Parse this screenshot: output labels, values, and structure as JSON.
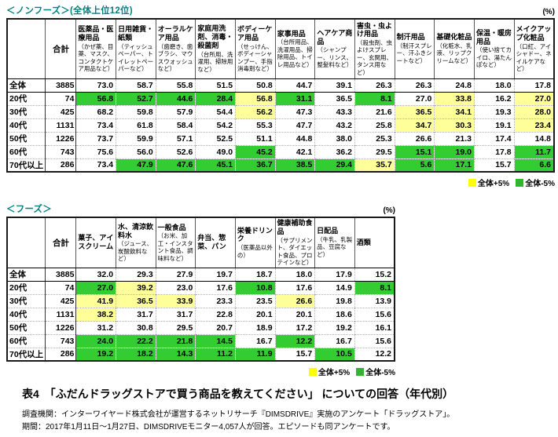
{
  "colors": {
    "section_title": "#008080",
    "highlight_plus": "#ffff99",
    "highlight_minus": "#33cc33",
    "legend_plus": "#ffff00",
    "legend_minus": "#2db82d"
  },
  "legend": {
    "plus_label": "全体+5%",
    "minus_label": "全体-5%"
  },
  "caption": "表4　「ふだんドラッグストアで買う商品を教えてください」 についての回答（年代別）",
  "footnotes": [
    "調査機関：インターワイヤード株式会社が運営するネットリサーチ『DIMSDRIVE』実施のアンケート「ドラッグストア」。",
    "期間：2017年1月11日～1月27日、DIMSDRIVEモニター4,057人が回答。エピソードも同アンケートです。"
  ],
  "table1": {
    "title": "＜ノンフーズ＞(全体上位12位)",
    "percent": "(%)",
    "total_label": "合計",
    "columns": [
      {
        "label": "医薬品・医療用品",
        "sub": "（かぜ薬、目薬、マスク、コンタクトケア用品など）"
      },
      {
        "label": "日用雑貨・紙類",
        "sub": "（ティッシュペーパー、トイレットペーパーなど）"
      },
      {
        "label": "オーラルケア用品",
        "sub": "（歯磨き、歯ブラシ、マウスウォッシュなど）"
      },
      {
        "label": "家庭用洗剤、消毒・殺菌剤",
        "sub": "（台所用、洗濯用、掃除用など）"
      },
      {
        "label": "ボディーケア用品",
        "sub": "（せっけん、ボディーシャンプー、手指消毒剤など）"
      },
      {
        "label": "家事用品",
        "sub": "（台所用品、洗濯用品、掃除用品、トイレ用品など）"
      },
      {
        "label": "ヘアケア商品",
        "sub": "（シャンプー、リンス、整髪料など）"
      },
      {
        "label": "害虫・虫よけ用品",
        "sub": "（殺虫剤、虫よけスプレー、玄関用、タンス用など）"
      },
      {
        "label": "制汗用品",
        "sub": "（制汗スプレー、汗ふきシートなど）"
      },
      {
        "label": "基礎化粧品",
        "sub": "（化粧水、乳液、リップクリームなど）"
      },
      {
        "label": "保温・暖房用品",
        "sub": "（使い捨てカイロ、湯たんぽなど）"
      },
      {
        "label": "メイクアップ化粧品",
        "sub": "（口紅、アイシャドー、ネイルケアなど）"
      }
    ],
    "rows": [
      {
        "label": "全体",
        "total": "3885",
        "values": [
          "73.0",
          "58.7",
          "55.8",
          "51.5",
          "50.8",
          "44.7",
          "39.1",
          "26.3",
          "26.3",
          "24.8",
          "18.0",
          "17.8"
        ],
        "hl": [
          "",
          "",
          "",
          "",
          "",
          "",
          "",
          "",
          "",
          "",
          "",
          ""
        ]
      },
      {
        "label": "20代",
        "total": "74",
        "values": [
          "56.8",
          "52.7",
          "44.6",
          "28.4",
          "56.8",
          "31.1",
          "36.5",
          "8.1",
          "27.0",
          "33.8",
          "16.2",
          "27.0"
        ],
        "hl": [
          "g",
          "g",
          "g",
          "g",
          "y",
          "g",
          "",
          "g",
          "",
          "y",
          "",
          "y"
        ]
      },
      {
        "label": "30代",
        "total": "425",
        "values": [
          "68.2",
          "59.8",
          "57.9",
          "54.4",
          "56.2",
          "47.3",
          "43.3",
          "21.6",
          "36.5",
          "34.1",
          "19.3",
          "28.0"
        ],
        "hl": [
          "",
          "",
          "",
          "",
          "y",
          "",
          "",
          "",
          "y",
          "y",
          "",
          "y"
        ]
      },
      {
        "label": "40代",
        "total": "1131",
        "values": [
          "73.4",
          "61.8",
          "58.4",
          "54.2",
          "55.3",
          "47.7",
          "43.2",
          "25.8",
          "34.7",
          "30.3",
          "19.1",
          "23.4"
        ],
        "hl": [
          "",
          "",
          "",
          "",
          "",
          "",
          "",
          "",
          "y",
          "y",
          "",
          "y"
        ]
      },
      {
        "label": "50代",
        "total": "1226",
        "values": [
          "73.7",
          "59.9",
          "57.1",
          "52.5",
          "51.1",
          "44.8",
          "38.0",
          "25.3",
          "26.6",
          "21.3",
          "17.4",
          "14.8"
        ],
        "hl": [
          "",
          "",
          "",
          "",
          "",
          "",
          "",
          "",
          "",
          "",
          "",
          ""
        ]
      },
      {
        "label": "60代",
        "total": "743",
        "values": [
          "75.6",
          "56.0",
          "52.6",
          "49.0",
          "45.2",
          "42.1",
          "36.2",
          "29.5",
          "15.1",
          "19.0",
          "17.8",
          "11.7"
        ],
        "hl": [
          "",
          "",
          "",
          "",
          "g",
          "",
          "",
          "",
          "g",
          "g",
          "",
          "g"
        ]
      },
      {
        "label": "70代以上",
        "total": "286",
        "values": [
          "73.4",
          "47.9",
          "47.6",
          "45.1",
          "36.7",
          "38.5",
          "29.4",
          "35.7",
          "5.6",
          "17.1",
          "15.7",
          "6.6"
        ],
        "hl": [
          "",
          "g",
          "g",
          "g",
          "g",
          "g",
          "g",
          "y",
          "g",
          "g",
          "",
          "g"
        ]
      }
    ]
  },
  "table2": {
    "title": "＜フーズ＞",
    "percent": "(%)",
    "total_label": "合計",
    "columns": [
      {
        "label": "菓子、アイスクリーム",
        "sub": ""
      },
      {
        "label": "水、清涼飲料水",
        "sub": "（ジュース、炭酸飲料など）"
      },
      {
        "label": "一般食品",
        "sub": "（お米、加工・インスタント食品、調味料など）"
      },
      {
        "label": "弁当、惣菜、パン",
        "sub": ""
      },
      {
        "label": "栄養ドリンク",
        "sub": "（医薬品以外の）"
      },
      {
        "label": "健康補助食品",
        "sub": "（サプリメント、ダイエット食品、プロテインなど）"
      },
      {
        "label": "日配品",
        "sub": "（牛乳、乳製品、豆腐など）"
      },
      {
        "label": "酒類",
        "sub": ""
      }
    ],
    "rows": [
      {
        "label": "全体",
        "total": "3885",
        "values": [
          "32.0",
          "29.3",
          "27.9",
          "19.7",
          "18.7",
          "18.0",
          "17.9",
          "15.2"
        ],
        "hl": [
          "",
          "",
          "",
          "",
          "",
          "",
          "",
          ""
        ]
      },
      {
        "label": "20代",
        "total": "74",
        "values": [
          "27.0",
          "39.2",
          "23.0",
          "17.6",
          "10.8",
          "17.6",
          "14.9",
          "8.1"
        ],
        "hl": [
          "g",
          "y",
          "",
          "",
          "g",
          "",
          "",
          "g"
        ]
      },
      {
        "label": "30代",
        "total": "425",
        "values": [
          "41.9",
          "36.5",
          "33.9",
          "23.3",
          "23.5",
          "26.6",
          "19.8",
          "13.9"
        ],
        "hl": [
          "y",
          "y",
          "y",
          "",
          "",
          "y",
          "",
          ""
        ]
      },
      {
        "label": "40代",
        "total": "1131",
        "values": [
          "38.2",
          "31.7",
          "31.7",
          "22.8",
          "20.1",
          "20.1",
          "18.6",
          "15.6"
        ],
        "hl": [
          "y",
          "",
          "",
          "",
          "",
          "",
          "",
          ""
        ]
      },
      {
        "label": "50代",
        "total": "1226",
        "values": [
          "31.2",
          "30.8",
          "29.5",
          "20.7",
          "18.9",
          "17.2",
          "19.2",
          "16.1"
        ],
        "hl": [
          "",
          "",
          "",
          "",
          "",
          "",
          "",
          ""
        ]
      },
      {
        "label": "60代",
        "total": "743",
        "values": [
          "24.0",
          "22.2",
          "21.8",
          "14.5",
          "16.7",
          "12.2",
          "16.7",
          "15.6"
        ],
        "hl": [
          "g",
          "g",
          "g",
          "g",
          "",
          "g",
          "",
          ""
        ]
      },
      {
        "label": "70代以上",
        "total": "286",
        "values": [
          "19.2",
          "18.2",
          "14.3",
          "11.2",
          "11.9",
          "15.7",
          "10.5",
          "12.2"
        ],
        "hl": [
          "g",
          "g",
          "g",
          "g",
          "g",
          "",
          "g",
          ""
        ]
      }
    ]
  }
}
